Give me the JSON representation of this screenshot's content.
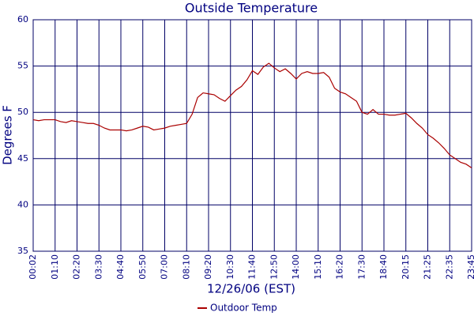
{
  "chart_data": {
    "type": "line",
    "title": "Outside Temperature",
    "x_label": "12/26/06 (EST)",
    "y_label": "Degrees F",
    "categories": [
      "00:02",
      null,
      null,
      null,
      "01:10",
      null,
      null,
      null,
      "02:20",
      null,
      null,
      null,
      "03:30",
      null,
      null,
      null,
      "04:40",
      null,
      null,
      null,
      "05:50",
      null,
      null,
      null,
      "07:00",
      null,
      null,
      null,
      "08:10",
      null,
      null,
      null,
      "09:20",
      null,
      null,
      null,
      "10:30",
      null,
      null,
      null,
      "11:40",
      null,
      null,
      null,
      "12:50",
      null,
      null,
      null,
      "14:00",
      null,
      null,
      null,
      "15:10",
      null,
      null,
      null,
      "16:20",
      null,
      null,
      null,
      "17:30",
      null,
      null,
      null,
      "18:40",
      null,
      null,
      null,
      "20:15",
      null,
      null,
      null,
      "21:25",
      null,
      null,
      null,
      "22:35",
      null,
      null,
      null,
      "23:45"
    ],
    "series": [
      {
        "name": "Outdoor Temp",
        "color": "#aa0000",
        "values": [
          49.2,
          49.1,
          49.2,
          49.2,
          49.2,
          49.0,
          48.9,
          49.1,
          49.0,
          48.9,
          48.8,
          48.8,
          48.6,
          48.3,
          48.1,
          48.1,
          48.1,
          48.0,
          48.1,
          48.3,
          48.5,
          48.4,
          48.1,
          48.2,
          48.3,
          48.5,
          48.6,
          48.7,
          48.8,
          49.8,
          51.6,
          52.1,
          52.0,
          51.9,
          51.5,
          51.2,
          51.8,
          52.4,
          52.8,
          53.5,
          54.5,
          54.1,
          54.9,
          55.3,
          54.8,
          54.4,
          54.7,
          54.2,
          53.6,
          54.2,
          54.4,
          54.2,
          54.2,
          54.3,
          53.8,
          52.6,
          52.2,
          52.0,
          51.6,
          51.2,
          50.0,
          49.8,
          50.3,
          49.8,
          49.8,
          49.7,
          49.7,
          49.8,
          49.9,
          49.4,
          48.8,
          48.3,
          47.6,
          47.2,
          46.7,
          46.1,
          45.4,
          45.0,
          44.6,
          44.4,
          44.0
        ]
      }
    ],
    "ylim": [
      35,
      60
    ],
    "yticks": [
      35,
      40,
      45,
      50,
      55,
      60
    ],
    "grid": true,
    "grid_color": "#000066"
  }
}
